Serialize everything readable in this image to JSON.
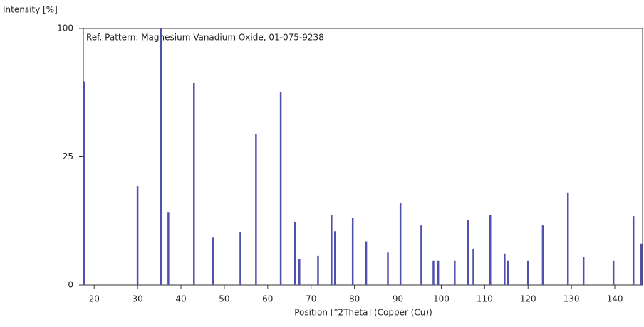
{
  "chart_data": {
    "type": "stick",
    "title": "Ref. Pattern: Magnesium Vanadium Oxide, 01-075-9238",
    "y_label": "Intensity [%]",
    "x_label": "Position [°2Theta] (Copper (Cu))",
    "x": [
      17.7,
      30.0,
      35.4,
      37.1,
      43.0,
      47.4,
      53.7,
      57.3,
      63.0,
      66.3,
      67.3,
      71.6,
      74.7,
      75.5,
      79.6,
      82.7,
      87.7,
      90.6,
      95.4,
      98.2,
      99.3,
      103.1,
      106.2,
      107.4,
      111.3,
      114.6,
      115.4,
      120.0,
      123.4,
      129.2,
      132.8,
      139.7,
      144.3,
      146.1
    ],
    "values": [
      63,
      14.8,
      100,
      8.1,
      61.9,
      3.4,
      4.2,
      34.8,
      56.4,
      6.1,
      1.0,
      1.3,
      7.5,
      4.4,
      6.8,
      2.9,
      1.6,
      10.3,
      5.4,
      0.9,
      0.9,
      0.9,
      6.4,
      2.0,
      7.4,
      1.5,
      0.9,
      0.9,
      5.4,
      13.0,
      1.2,
      0.9,
      7.2,
      2.6
    ],
    "color": "#5050b0",
    "yscale": "sqrt",
    "xlim": [
      17.5,
      146.4
    ],
    "ylim": [
      0,
      100
    ],
    "xticks": [
      20,
      30,
      40,
      50,
      60,
      70,
      80,
      90,
      100,
      110,
      120,
      130,
      140
    ],
    "yticks": [
      0,
      25,
      100
    ]
  }
}
